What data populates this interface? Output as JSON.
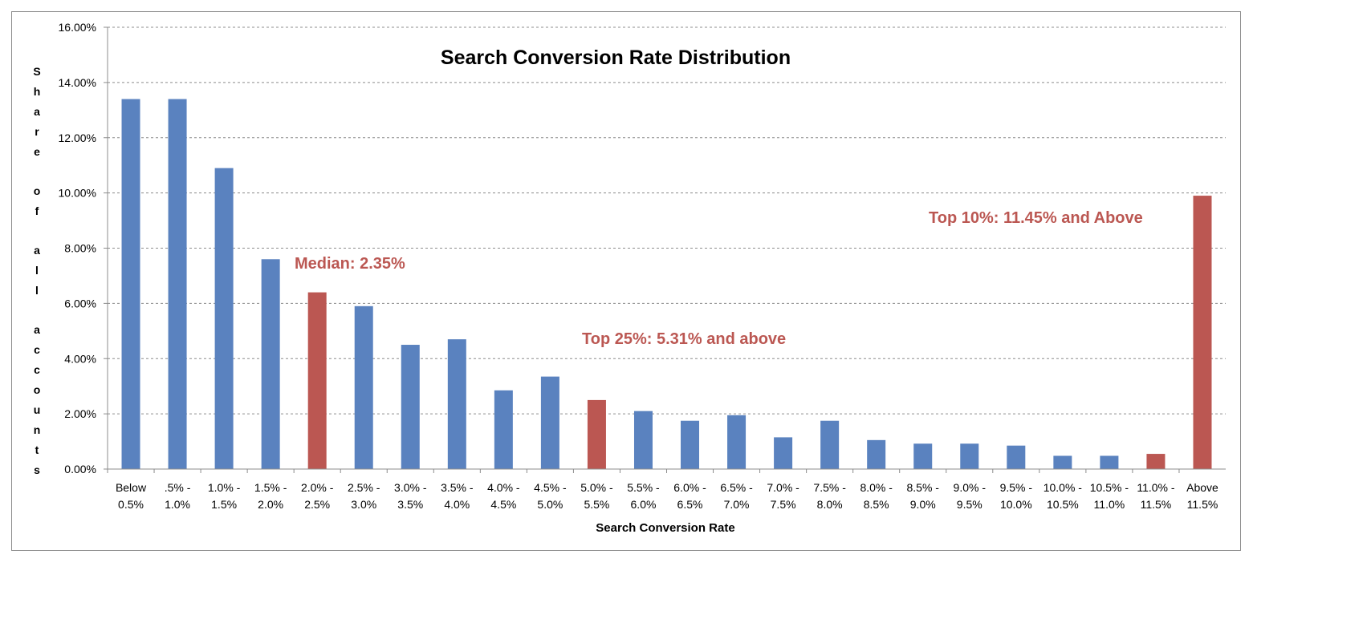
{
  "chart_data": {
    "type": "bar",
    "title": "Search Conversion Rate Distribution",
    "xlabel": "Search Conversion Rate",
    "ylabel": "Share of all accounts",
    "ylim": [
      0,
      16
    ],
    "yticks": [
      "0.00%",
      "2.00%",
      "4.00%",
      "6.00%",
      "8.00%",
      "10.00%",
      "12.00%",
      "14.00%",
      "16.00%"
    ],
    "grid": "horizontal dashed",
    "categories": [
      [
        "Below",
        "0.5%"
      ],
      [
        ".5% -",
        "1.0%"
      ],
      [
        "1.0% -",
        "1.5%"
      ],
      [
        "1.5% -",
        "2.0%"
      ],
      [
        "2.0% -",
        "2.5%"
      ],
      [
        "2.5% -",
        "3.0%"
      ],
      [
        "3.0% -",
        "3.5%"
      ],
      [
        "3.5% -",
        "4.0%"
      ],
      [
        "4.0% -",
        "4.5%"
      ],
      [
        "4.5% -",
        "5.0%"
      ],
      [
        "5.0% -",
        "5.5%"
      ],
      [
        "5.5% -",
        "6.0%"
      ],
      [
        "6.0% -",
        "6.5%"
      ],
      [
        "6.5% -",
        "7.0%"
      ],
      [
        "7.0% -",
        "7.5%"
      ],
      [
        "7.5% -",
        "8.0%"
      ],
      [
        "8.0% -",
        "8.5%"
      ],
      [
        "8.5% -",
        "9.0%"
      ],
      [
        "9.0% -",
        "9.5%"
      ],
      [
        "9.5% -",
        "10.0%"
      ],
      [
        "10.0% -",
        "10.5%"
      ],
      [
        "10.5% -",
        "11.0%"
      ],
      [
        "11.0% -",
        "11.5%"
      ],
      [
        "Above",
        "11.5%"
      ]
    ],
    "values": [
      13.4,
      13.4,
      10.9,
      7.6,
      6.4,
      5.9,
      4.5,
      4.7,
      2.85,
      3.35,
      2.5,
      2.1,
      1.75,
      1.95,
      1.15,
      1.75,
      1.05,
      0.92,
      0.92,
      0.85,
      0.48,
      0.48,
      0.55,
      9.9
    ],
    "highlighted": [
      4,
      10,
      22,
      23
    ],
    "colors": {
      "bar": "#5a82bf",
      "highlight": "#bb5752",
      "annotation": "#bb5752",
      "grid": "#8c8c8c"
    },
    "annotations": [
      {
        "text": "Median: 2.35%"
      },
      {
        "text": "Top 25%: 5.31% and above"
      },
      {
        "text": "Top 10%: 11.45% and Above"
      }
    ]
  }
}
